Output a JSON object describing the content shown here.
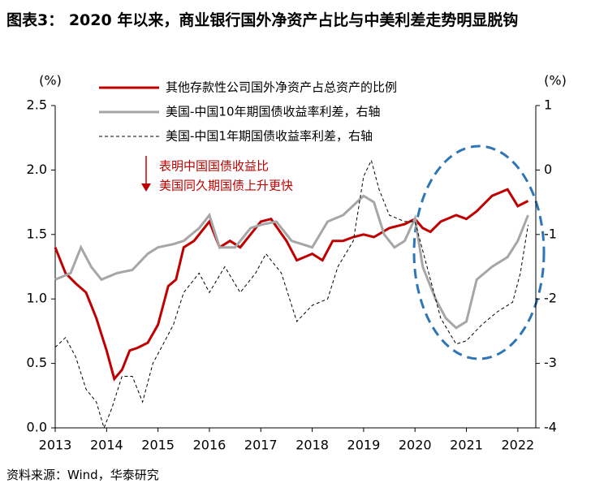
{
  "chart_data": {
    "type": "line",
    "title": "图表3： 2020 年以来，商业银行国外净资产占比与中美利差走势明显脱钩",
    "y_unit": "(%)",
    "y2_unit": "(%)",
    "annotation": [
      "表明中国国债收益比",
      "美国同久期国债上升更快"
    ],
    "source": "资料来源：Wind，华泰研究",
    "xlim": [
      2013,
      2022.35
    ],
    "xticks": [
      2013,
      2014,
      2015,
      2016,
      2017,
      2018,
      2019,
      2020,
      2021,
      2022
    ],
    "ylim": [
      0,
      2.5
    ],
    "yticks": [
      {
        "value": 0,
        "label": "0.0"
      },
      {
        "value": 0.5,
        "label": "0.5"
      },
      {
        "value": 1,
        "label": "1.0"
      },
      {
        "value": 1.5,
        "label": "1.5"
      },
      {
        "value": 2,
        "label": "2.0"
      },
      {
        "value": 2.5,
        "label": "2.5"
      }
    ],
    "y2lim": [
      -4,
      1
    ],
    "y2ticks": [
      -4,
      -3,
      -2,
      -1,
      0,
      1
    ],
    "series": [
      {
        "name": "其他存款性公司国外净资产占总资产的比例",
        "color": "#c00000",
        "axis": "y",
        "x": [
          2013.0,
          2013.2,
          2013.4,
          2013.6,
          2013.8,
          2014.0,
          2014.15,
          2014.3,
          2014.45,
          2014.6,
          2014.8,
          2015.0,
          2015.2,
          2015.35,
          2015.5,
          2015.7,
          2016.0,
          2016.2,
          2016.4,
          2016.6,
          2016.8,
          2017.0,
          2017.2,
          2017.5,
          2017.7,
          2018.0,
          2018.2,
          2018.4,
          2018.6,
          2018.8,
          2019.0,
          2019.2,
          2019.5,
          2019.8,
          2020.0,
          2020.15,
          2020.3,
          2020.5,
          2020.8,
          2021.0,
          2021.2,
          2021.5,
          2021.8,
          2022.0,
          2022.2
        ],
        "values": [
          1.4,
          1.2,
          1.12,
          1.05,
          0.85,
          0.6,
          0.38,
          0.45,
          0.6,
          0.62,
          0.66,
          0.8,
          1.1,
          1.15,
          1.4,
          1.45,
          1.6,
          1.4,
          1.45,
          1.4,
          1.5,
          1.6,
          1.62,
          1.45,
          1.3,
          1.35,
          1.3,
          1.45,
          1.45,
          1.48,
          1.5,
          1.48,
          1.55,
          1.58,
          1.62,
          1.55,
          1.52,
          1.6,
          1.65,
          1.62,
          1.68,
          1.8,
          1.85,
          1.72,
          1.76
        ]
      },
      {
        "name": "美国-中国10年期国债收益率利差，右轴",
        "color": "#a6a6a6",
        "axis": "y2",
        "x": [
          2013.0,
          2013.3,
          2013.5,
          2013.7,
          2013.9,
          2014.2,
          2014.5,
          2014.8,
          2015.0,
          2015.3,
          2015.5,
          2015.8,
          2016.0,
          2016.2,
          2016.5,
          2016.8,
          2017.0,
          2017.3,
          2017.6,
          2017.8,
          2018.0,
          2018.3,
          2018.6,
          2018.8,
          2019.0,
          2019.2,
          2019.4,
          2019.6,
          2019.8,
          2020.0,
          2020.15,
          2020.4,
          2020.6,
          2020.8,
          2021.0,
          2021.2,
          2021.5,
          2021.8,
          2022.0,
          2022.2
        ],
        "values": [
          -1.7,
          -1.6,
          -1.2,
          -1.5,
          -1.7,
          -1.6,
          -1.55,
          -1.3,
          -1.2,
          -1.15,
          -1.1,
          -0.9,
          -0.7,
          -1.2,
          -1.2,
          -0.9,
          -0.85,
          -0.8,
          -1.1,
          -1.15,
          -1.2,
          -0.8,
          -0.7,
          -0.55,
          -0.4,
          -0.5,
          -1.0,
          -1.2,
          -1.1,
          -0.75,
          -1.5,
          -2.0,
          -2.3,
          -2.45,
          -2.35,
          -1.7,
          -1.5,
          -1.35,
          -1.1,
          -0.7
        ]
      },
      {
        "name": "美国-中国1年期国债收益率利差，右轴",
        "color": "#000000",
        "axis": "y2",
        "dashed": true,
        "x": [
          2013.0,
          2013.2,
          2013.4,
          2013.6,
          2013.8,
          2013.95,
          2014.1,
          2014.3,
          2014.5,
          2014.7,
          2014.9,
          2015.1,
          2015.3,
          2015.5,
          2015.8,
          2016.0,
          2016.3,
          2016.6,
          2016.9,
          2017.1,
          2017.4,
          2017.7,
          2018.0,
          2018.3,
          2018.5,
          2018.8,
          2019.0,
          2019.15,
          2019.3,
          2019.5,
          2019.8,
          2020.0,
          2020.2,
          2020.5,
          2020.8,
          2021.0,
          2021.3,
          2021.6,
          2021.9,
          2022.05,
          2022.2
        ],
        "values": [
          -2.75,
          -2.6,
          -2.9,
          -3.4,
          -3.6,
          -4.0,
          -3.7,
          -3.2,
          -3.2,
          -3.6,
          -3.0,
          -2.7,
          -2.4,
          -1.9,
          -1.6,
          -1.9,
          -1.5,
          -1.9,
          -1.6,
          -1.3,
          -1.6,
          -2.35,
          -2.1,
          -2.0,
          -1.5,
          -1.1,
          -0.1,
          0.15,
          -0.3,
          -0.7,
          -0.8,
          -0.8,
          -1.4,
          -2.3,
          -2.7,
          -2.65,
          -2.4,
          -2.2,
          -2.05,
          -1.6,
          -0.85
        ]
      }
    ]
  }
}
